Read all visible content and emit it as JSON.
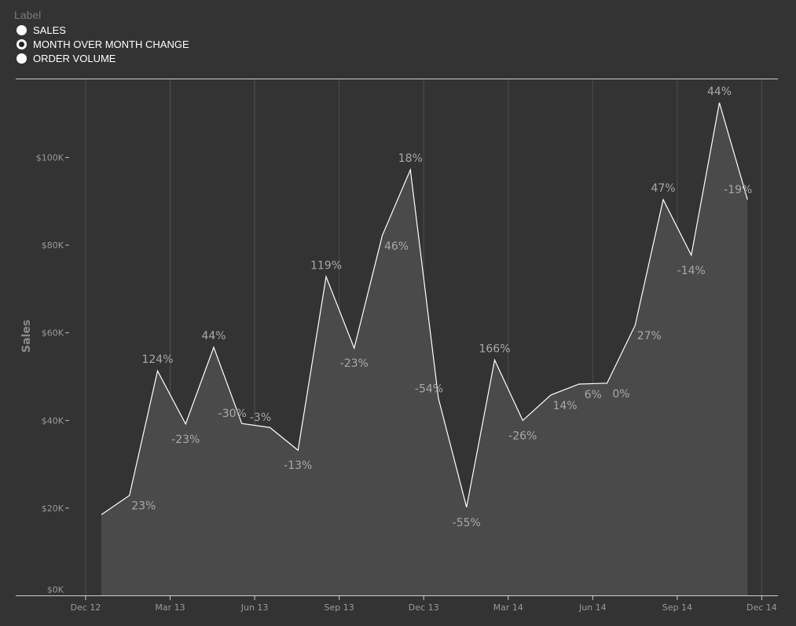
{
  "legend": {
    "title": "Label",
    "options": [
      {
        "label": "SALES",
        "selected": false
      },
      {
        "label": "MONTH OVER MONTH CHANGE",
        "selected": true
      },
      {
        "label": "ORDER VOLUME",
        "selected": false
      }
    ]
  },
  "colors": {
    "background": "#333333",
    "area": "#4a4a4a",
    "line": "#ffffff",
    "grid": "#4f4f4f"
  },
  "chart_data": {
    "type": "area",
    "ylabel": "Sales",
    "xlabel": "",
    "ylim": [
      0,
      117
    ],
    "y_unit": "K USD",
    "y_ticks": [
      {
        "v": 0,
        "label": "$0K"
      },
      {
        "v": 20,
        "label": "$20K"
      },
      {
        "v": 40,
        "label": "$40K"
      },
      {
        "v": 60,
        "label": "$60K"
      },
      {
        "v": 80,
        "label": "$80K"
      },
      {
        "v": 100,
        "label": "$100K"
      }
    ],
    "x_ticks": [
      "Dec 12",
      "Mar 13",
      "Jun 13",
      "Sep 13",
      "Dec 13",
      "Mar 14",
      "Jun 14",
      "Sep 14",
      "Dec 14"
    ],
    "x": [
      "Jan 13",
      "Feb 13",
      "Mar 13",
      "Apr 13",
      "May 13",
      "Jun 13",
      "Jul 13",
      "Aug 13",
      "Sep 13",
      "Oct 13",
      "Nov 13",
      "Dec 13",
      "Jan 14",
      "Feb 14",
      "Mar 14",
      "Apr 14",
      "May 14",
      "Jun 14",
      "Jul 14",
      "Aug 14",
      "Sep 14",
      "Oct 14",
      "Nov 14",
      "Dec 14"
    ],
    "values": [
      18.5,
      22.9,
      51.3,
      39.2,
      56.7,
      39.3,
      38.4,
      33.2,
      72.8,
      56.5,
      82.2,
      97.2,
      45.0,
      20.2,
      53.8,
      40.0,
      45.8,
      48.3,
      48.5,
      61.7,
      90.4,
      77.7,
      112.5,
      90.4
    ],
    "data_labels": [
      "",
      "23%",
      "124%",
      "-23%",
      "44%",
      "-30%",
      "-3%",
      "-13%",
      "119%",
      "-23%",
      "46%",
      "18%",
      "-54%",
      "-55%",
      "166%",
      "-26%",
      "14%",
      "6%",
      "0%",
      "27%",
      "47%",
      "-14%",
      "44%",
      "-19%"
    ],
    "grid": "vertical",
    "legend": "top-left"
  }
}
